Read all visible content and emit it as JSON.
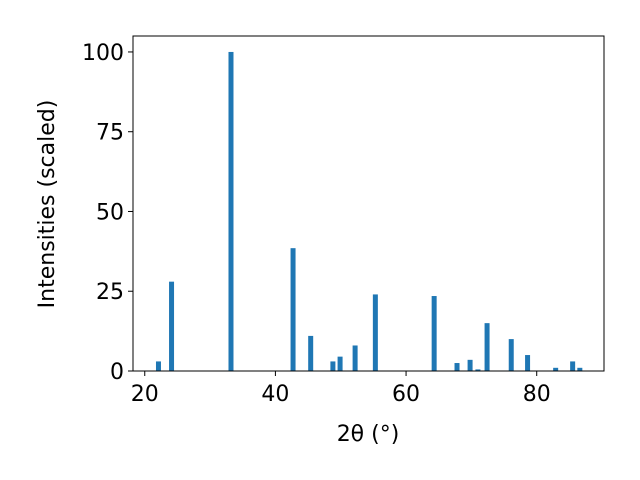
{
  "chart_data": {
    "type": "bar",
    "xlabel": "2θ (°)",
    "ylabel": "Intensities (scaled)",
    "x": [
      22.1,
      24.1,
      33.2,
      42.7,
      45.4,
      48.8,
      49.9,
      52.2,
      55.3,
      64.3,
      67.8,
      69.8,
      71.0,
      72.4,
      76.1,
      78.6,
      82.9,
      85.5,
      86.6
    ],
    "values": [
      3,
      28,
      100,
      38.5,
      11,
      3,
      4.5,
      8,
      24,
      23.5,
      2.5,
      3.5,
      0.5,
      15,
      10,
      5,
      1,
      3,
      1
    ],
    "color": "#1f77b4",
    "xlim": [
      18.2,
      90.3
    ],
    "xticks": [
      20,
      40,
      60,
      80
    ],
    "ylim": [
      0,
      105
    ],
    "yticks": [
      0,
      25,
      50,
      75,
      100
    ],
    "grid": false
  }
}
